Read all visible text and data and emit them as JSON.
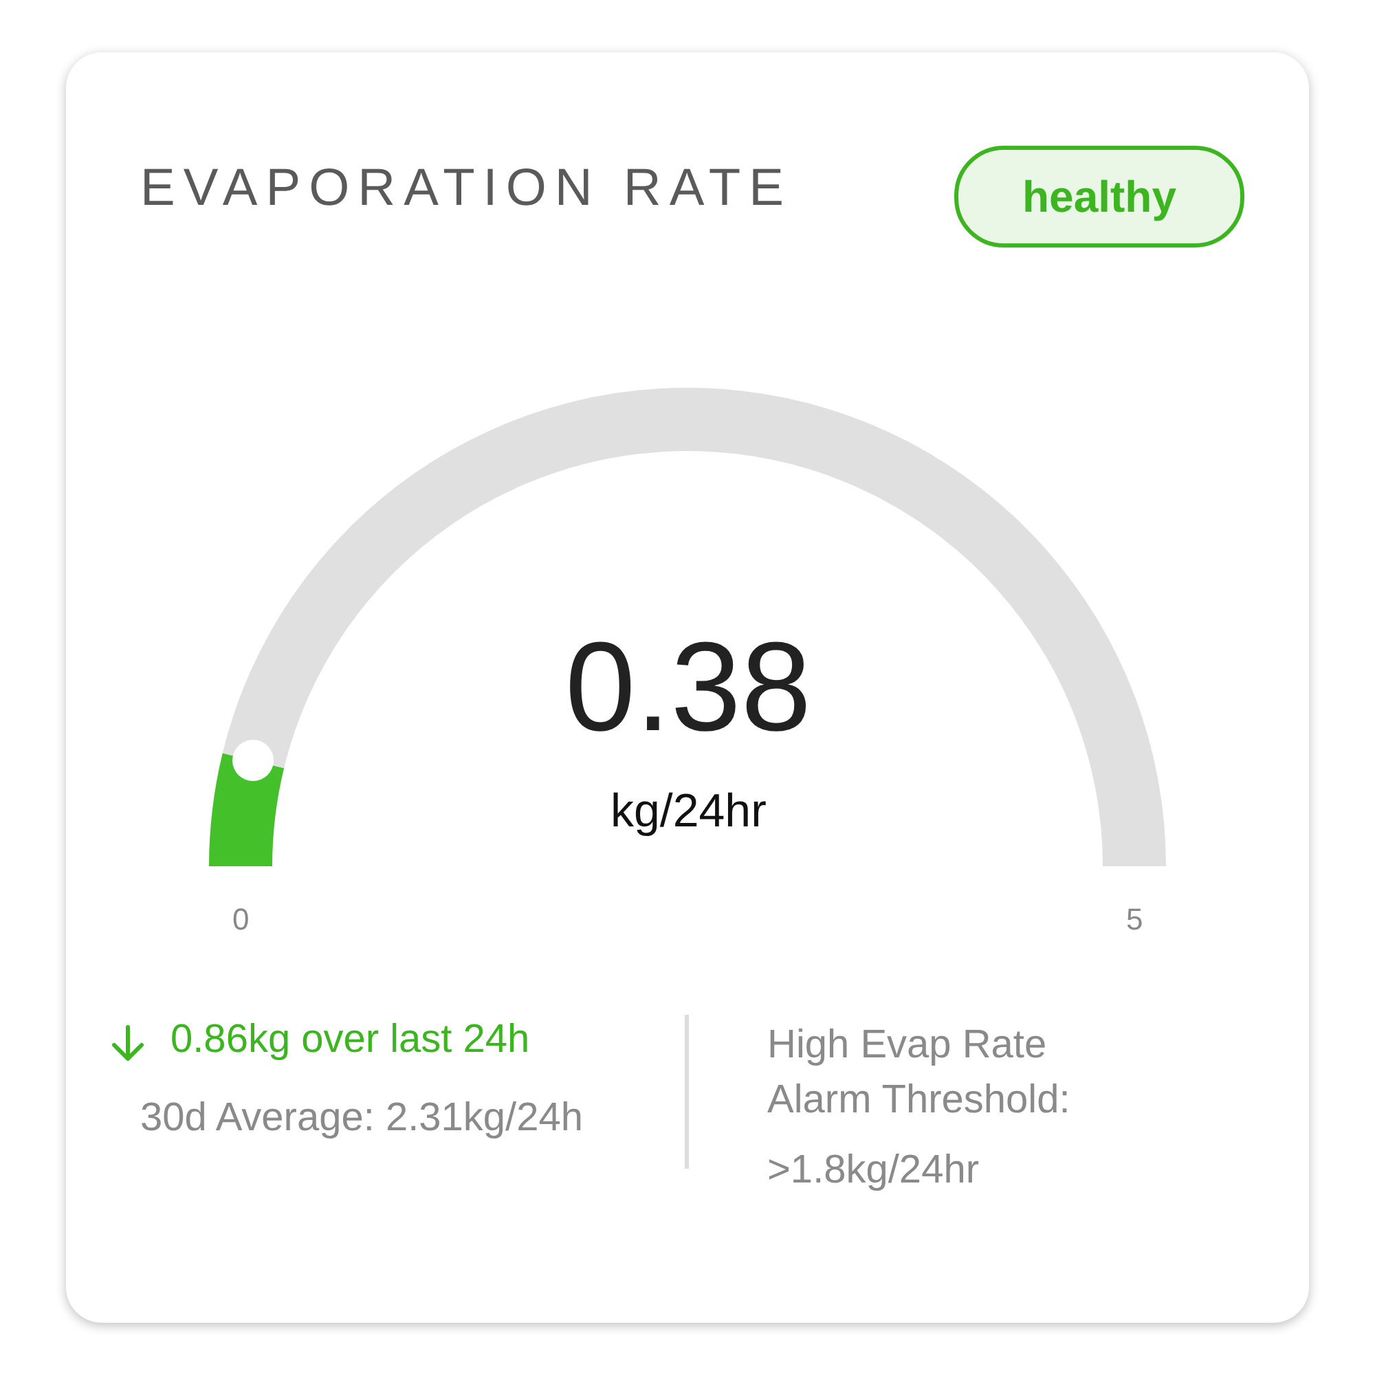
{
  "chart_data": {
    "type": "donut",
    "title": "EVAPORATION RATE",
    "categories": [
      null,
      null
    ],
    "values": [
      7.6,
      92.4
    ],
    "colors": [
      "#44c12a",
      "#e0e0e0"
    ],
    "annotations": [
      "healthy",
      "0.38",
      "kg/24hr",
      "0",
      "5",
      "0.86kg over last 24h",
      "30d Average: 2.31kg/24h",
      "High Evap Rate Alarm Threshold:",
      ">1.8kg/24hr"
    ]
  }
}
